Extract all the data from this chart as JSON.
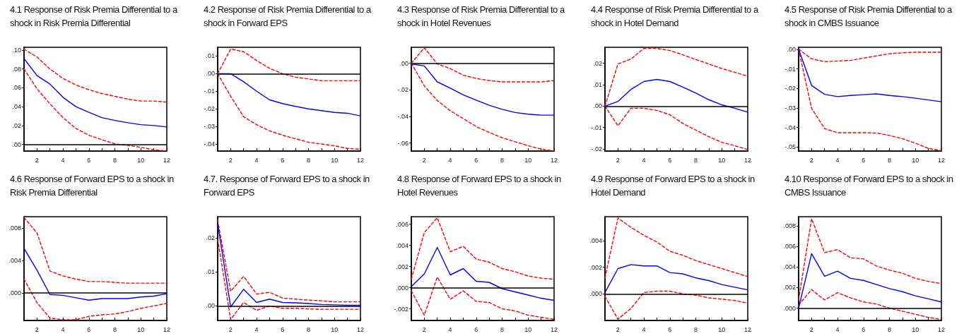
{
  "chart_data": [
    {
      "type": "line",
      "title": "4.1 Response of Risk Premia Differential to a shock in Risk Premia Differential",
      "x": [
        1,
        2,
        3,
        4,
        5,
        6,
        7,
        8,
        9,
        10,
        11,
        12
      ],
      "marker": "none",
      "xlim": [
        1,
        12
      ],
      "xticks": [
        {
          "value": 1,
          "label": null
        },
        2,
        {
          "value": 3,
          "label": null
        },
        4,
        {
          "value": 5,
          "label": null
        },
        6,
        {
          "value": 7,
          "label": null
        },
        8,
        {
          "value": 9,
          "label": null
        },
        10,
        {
          "value": 11,
          "label": null
        },
        12
      ],
      "ylim": [
        -0.007,
        0.103
      ],
      "yticks": [
        {
          "value": 0,
          "label": ".00"
        },
        {
          "value": 0.02,
          "label": ".02"
        },
        {
          "value": 0.04,
          "label": ".04"
        },
        {
          "value": 0.06,
          "label": ".06"
        },
        {
          "value": 0.08,
          "label": ".08"
        },
        {
          "value": 0.1,
          "label": ".10"
        }
      ],
      "ref_lines": [
        {
          "axis": "y",
          "value": 0,
          "color": "#000000"
        }
      ],
      "series": [
        {
          "color": "#0000ff",
          "line_style": "solid",
          "values": [
            0.091,
            0.073,
            0.064,
            0.05,
            0.04,
            0.034,
            0.0285,
            0.0255,
            0.023,
            0.021,
            0.02,
            0.0185
          ]
        },
        {
          "color": "#ff0000",
          "line_style": "dashed",
          "values": [
            0.101,
            0.0927,
            0.08,
            0.07,
            0.063,
            0.058,
            0.054,
            0.051,
            0.048,
            0.046,
            0.046,
            0.045
          ]
        },
        {
          "color": "#ff0000",
          "line_style": "dashed",
          "values": [
            0.08,
            0.059,
            0.043,
            0.0285,
            0.017,
            0.0097,
            0.005,
            0.0007,
            -0.001,
            -0.003,
            -0.0057,
            -0.0068
          ]
        }
      ]
    },
    {
      "type": "line",
      "title": "4.2 Response of Risk Premia Differential to a shock in Forward EPS",
      "x": [
        1,
        2,
        3,
        4,
        5,
        6,
        7,
        8,
        9,
        10,
        11,
        12
      ],
      "marker": "none",
      "xlim": [
        1,
        12
      ],
      "xticks": [
        {
          "value": 1,
          "label": null
        },
        2,
        {
          "value": 3,
          "label": null
        },
        4,
        {
          "value": 5,
          "label": null
        },
        6,
        {
          "value": 7,
          "label": null
        },
        8,
        {
          "value": 9,
          "label": null
        },
        10,
        {
          "value": 11,
          "label": null
        },
        12
      ],
      "ylim": [
        -0.044,
        0.015
      ],
      "yticks": [
        {
          "value": -0.04,
          "label": "-.04"
        },
        {
          "value": -0.03,
          "label": "-.03"
        },
        {
          "value": -0.02,
          "label": "-.02"
        },
        {
          "value": -0.01,
          "label": "-.01"
        },
        {
          "value": 0,
          "label": ".00"
        },
        {
          "value": 0.01,
          "label": ".01"
        }
      ],
      "ref_lines": [
        {
          "axis": "y",
          "value": 0,
          "color": "#000000"
        }
      ],
      "series": [
        {
          "color": "#0000ff",
          "line_style": "solid",
          "values": [
            0,
            0,
            -0.0046,
            -0.01,
            -0.0149,
            -0.017,
            -0.0186,
            -0.02,
            -0.021,
            -0.022,
            -0.0225,
            -0.024
          ]
        },
        {
          "color": "#ff0000",
          "line_style": "dashed",
          "values": [
            0,
            0.014,
            0.0125,
            0.0075,
            0.003,
            0,
            -0.002,
            -0.003,
            -0.004,
            -0.004,
            -0.004,
            -0.004
          ]
        },
        {
          "color": "#ff0000",
          "line_style": "dashed",
          "values": [
            0,
            -0.0128,
            -0.0245,
            -0.029,
            -0.0325,
            -0.035,
            -0.037,
            -0.039,
            -0.04,
            -0.041,
            -0.0425,
            -0.043
          ]
        }
      ]
    },
    {
      "type": "line",
      "title": "4.3 Response of Risk Premia Differential to a shock in Hotel Revenues",
      "x": [
        1,
        2,
        3,
        4,
        5,
        6,
        7,
        8,
        9,
        10,
        11,
        12
      ],
      "marker": "none",
      "xlim": [
        1,
        12
      ],
      "xticks": [
        {
          "value": 1,
          "label": null
        },
        2,
        {
          "value": 3,
          "label": null
        },
        4,
        {
          "value": 5,
          "label": null
        },
        6,
        {
          "value": 7,
          "label": null
        },
        8,
        {
          "value": 9,
          "label": null
        },
        10,
        {
          "value": 11,
          "label": null
        },
        12
      ],
      "ylim": [
        -0.066,
        0.012
      ],
      "yticks": [
        {
          "value": -0.06,
          "label": "-.06"
        },
        {
          "value": -0.04,
          "label": "-.04"
        },
        {
          "value": -0.02,
          "label": "-.02"
        },
        {
          "value": 0,
          "label": ".00"
        }
      ],
      "ref_lines": [
        {
          "axis": "y",
          "value": 0,
          "color": "#000000"
        }
      ],
      "series": [
        {
          "color": "#0000ff",
          "line_style": "solid",
          "values": [
            -0.0005,
            -0.002,
            -0.014,
            -0.0187,
            -0.0237,
            -0.0277,
            -0.0316,
            -0.0346,
            -0.037,
            -0.0383,
            -0.039,
            -0.039
          ]
        },
        {
          "color": "#ff0000",
          "line_style": "dashed",
          "values": [
            0,
            0.0116,
            -0.0005,
            -0.004,
            -0.009,
            -0.0114,
            -0.013,
            -0.014,
            -0.014,
            -0.014,
            -0.014,
            -0.013
          ]
        },
        {
          "color": "#ff0000",
          "line_style": "dashed",
          "values": [
            0,
            -0.017,
            -0.028,
            -0.0357,
            -0.0416,
            -0.0476,
            -0.052,
            -0.056,
            -0.059,
            -0.062,
            -0.0645,
            -0.066
          ]
        }
      ]
    },
    {
      "type": "line",
      "title": "4.4 Response of Risk Premia Differential to a shock in Hotel Demand",
      "x": [
        1,
        2,
        3,
        4,
        5,
        6,
        7,
        8,
        9,
        10,
        11,
        12
      ],
      "marker": "none",
      "xlim": [
        1,
        12
      ],
      "xticks": [
        {
          "value": 1,
          "label": null
        },
        2,
        {
          "value": 3,
          "label": null
        },
        4,
        {
          "value": 5,
          "label": null
        },
        6,
        {
          "value": 7,
          "label": null
        },
        8,
        {
          "value": 9,
          "label": null
        },
        10,
        {
          "value": 11,
          "label": null
        },
        12
      ],
      "ylim": [
        -0.021,
        0.0275
      ],
      "yticks": [
        {
          "value": -0.02,
          "label": "-.02"
        },
        {
          "value": -0.01,
          "label": "-.01"
        },
        {
          "value": 0,
          "label": ".00"
        },
        {
          "value": 0.01,
          "label": ".01"
        },
        {
          "value": 0.02,
          "label": ".02"
        }
      ],
      "ref_lines": [
        {
          "axis": "y",
          "value": 0,
          "color": "#000000"
        }
      ],
      "series": [
        {
          "color": "#0000ff",
          "line_style": "solid",
          "values": [
            0,
            0.0022,
            0.0078,
            0.0115,
            0.0125,
            0.0115,
            0.0089,
            0.0061,
            0.003,
            0.0006,
            -0.001,
            -0.0028
          ]
        },
        {
          "color": "#ff0000",
          "line_style": "dashed",
          "values": [
            0,
            0.0197,
            0.022,
            0.027,
            0.027,
            0.026,
            0.024,
            0.0218,
            0.0197,
            0.0176,
            0.0158,
            0.014
          ]
        },
        {
          "color": "#ff0000",
          "line_style": "dashed",
          "values": [
            0,
            -0.0092,
            -0.001,
            -0.001,
            -0.002,
            -0.004,
            -0.0081,
            -0.0112,
            -0.0143,
            -0.0169,
            -0.0185,
            -0.0203
          ]
        }
      ]
    },
    {
      "type": "line",
      "title": "4.5 Response of Risk Premia Differential to a shock in CMBS Issuance",
      "x": [
        1,
        2,
        3,
        4,
        5,
        6,
        7,
        8,
        9,
        10,
        11,
        12
      ],
      "marker": "none",
      "xlim": [
        1,
        12
      ],
      "xticks": [
        {
          "value": 1,
          "label": null
        },
        2,
        {
          "value": 3,
          "label": null
        },
        4,
        {
          "value": 5,
          "label": null
        },
        6,
        {
          "value": 7,
          "label": null
        },
        8,
        {
          "value": 9,
          "label": null
        },
        10,
        {
          "value": 11,
          "label": null
        },
        12
      ],
      "ylim": [
        -0.052,
        0.001
      ],
      "yticks": [
        {
          "value": -0.05,
          "label": "-.05"
        },
        {
          "value": -0.04,
          "label": "-.04"
        },
        {
          "value": -0.03,
          "label": "-.03"
        },
        {
          "value": -0.02,
          "label": "-.02"
        },
        {
          "value": -0.01,
          "label": "-.01"
        },
        {
          "value": 0,
          "label": ".00"
        }
      ],
      "series": [
        {
          "color": "#0000ff",
          "line_style": "solid",
          "values": [
            0,
            -0.0185,
            -0.023,
            -0.0242,
            -0.0236,
            -0.0232,
            -0.0228,
            -0.0236,
            -0.0242,
            -0.025,
            -0.0259,
            -0.0268
          ]
        },
        {
          "color": "#ff0000",
          "line_style": "dashed",
          "values": [
            0,
            -0.0049,
            -0.0064,
            -0.006,
            -0.0057,
            -0.0045,
            -0.0034,
            -0.0023,
            -0.0018,
            -0.0015,
            -0.0015,
            -0.0015
          ]
        },
        {
          "color": "#ff0000",
          "line_style": "dashed",
          "values": [
            0,
            -0.0302,
            -0.0405,
            -0.0426,
            -0.0426,
            -0.0426,
            -0.0428,
            -0.044,
            -0.0457,
            -0.048,
            -0.0506,
            -0.0518
          ]
        }
      ]
    },
    {
      "type": "line",
      "title": "4.6 Response of Forward EPS to a shock in Risk Premia Differential",
      "x": [
        1,
        2,
        3,
        4,
        5,
        6,
        7,
        8,
        9,
        10,
        11,
        12
      ],
      "marker": "none",
      "xlim": [
        1,
        12
      ],
      "xticks": [
        {
          "value": 1,
          "label": null
        },
        2,
        {
          "value": 3,
          "label": null
        },
        4,
        {
          "value": 5,
          "label": null
        },
        6,
        {
          "value": 7,
          "label": null
        },
        8,
        {
          "value": 9,
          "label": null
        },
        10,
        {
          "value": 11,
          "label": null
        },
        12
      ],
      "ylim": [
        -0.0034,
        0.0094
      ],
      "yticks": [
        {
          "value": 0,
          "label": ".000"
        },
        {
          "value": 0.004,
          "label": ".004"
        },
        {
          "value": 0.008,
          "label": ".008"
        }
      ],
      "ref_lines": [
        {
          "axis": "y",
          "value": 0,
          "color": "#000000"
        }
      ],
      "series": [
        {
          "color": "#0000ff",
          "line_style": "solid",
          "values": [
            0.0055,
            0.0028,
            -0.0002,
            -0.0003,
            -0.0006,
            -0.0009,
            -0.0007,
            -0.0007,
            -0.0007,
            -0.0005,
            -0.0004,
            -0.0001
          ]
        },
        {
          "color": "#ff0000",
          "line_style": "dashed",
          "values": [
            0.0093,
            0.0074,
            0.0027,
            0.0021,
            0.0017,
            0.0014,
            0.0014,
            0.0013,
            0.0012,
            0.0012,
            0.0012,
            0.0012
          ]
        },
        {
          "color": "#ff0000",
          "line_style": "dashed",
          "values": [
            0.0017,
            -0.0012,
            -0.0031,
            -0.0033,
            -0.0033,
            -0.0029,
            -0.0027,
            -0.0026,
            -0.0023,
            -0.0019,
            -0.0016,
            -0.0013
          ]
        }
      ]
    },
    {
      "type": "line",
      "title": "4.7. Response of Forward EPS to a shock in Forward EPS",
      "x": [
        1,
        2,
        3,
        4,
        5,
        6,
        7,
        8,
        9,
        10,
        11,
        12
      ],
      "marker": "none",
      "xlim": [
        1,
        12
      ],
      "xticks": [
        {
          "value": 1,
          "label": null
        },
        2,
        {
          "value": 3,
          "label": null
        },
        4,
        {
          "value": 5,
          "label": null
        },
        6,
        {
          "value": 7,
          "label": null
        },
        8,
        {
          "value": 9,
          "label": null
        },
        10,
        {
          "value": 11,
          "label": null
        },
        12
      ],
      "ylim": [
        -0.0043,
        0.0263
      ],
      "yticks": [
        {
          "value": 0,
          "label": ".00"
        },
        {
          "value": 0.01,
          "label": ".01"
        },
        {
          "value": 0.02,
          "label": ".02"
        }
      ],
      "ref_lines": [
        {
          "axis": "y",
          "value": 0,
          "color": "#000000"
        }
      ],
      "series": [
        {
          "color": "#0000ff",
          "line_style": "solid",
          "values": [
            0.0243,
            -0.0003,
            0.0049,
            0.001,
            0.002,
            0.001,
            0.0009,
            0.0007,
            0.0004,
            0.0003,
            0.0002,
            0.0002
          ]
        },
        {
          "color": "#ff0000",
          "line_style": "dashed",
          "values": [
            0.0253,
            0.0043,
            0.0087,
            0.0035,
            0.004,
            0.0023,
            0.002,
            0.0017,
            0.0015,
            0.0012,
            0.0012,
            0.0012
          ]
        },
        {
          "color": "#ff0000",
          "line_style": "dashed",
          "values": [
            0.0197,
            -0.004,
            0.001,
            -0.0013,
            0,
            -0.0007,
            -0.0007,
            -0.0009,
            -0.001,
            -0.001,
            -0.001,
            -0.001
          ]
        }
      ]
    },
    {
      "type": "line",
      "title": "4.8 Response of Forward EPS to a shock in Hotel Revenues",
      "x": [
        1,
        2,
        3,
        4,
        5,
        6,
        7,
        8,
        9,
        10,
        11,
        12
      ],
      "marker": "none",
      "xlim": [
        1,
        12
      ],
      "xticks": [
        {
          "value": 1,
          "label": null
        },
        2,
        {
          "value": 3,
          "label": null
        },
        4,
        {
          "value": 5,
          "label": null
        },
        6,
        {
          "value": 7,
          "label": null
        },
        8,
        {
          "value": 9,
          "label": null
        },
        10,
        {
          "value": 11,
          "label": null
        },
        12
      ],
      "ylim": [
        -0.0031,
        0.0067
      ],
      "yticks": [
        {
          "value": -0.002,
          "label": "-.002"
        },
        {
          "value": 0,
          "label": ".000"
        },
        {
          "value": 0.002,
          "label": ".002"
        },
        {
          "value": 0.004,
          "label": ".004"
        },
        {
          "value": 0.006,
          "label": ".006"
        }
      ],
      "ref_lines": [
        {
          "axis": "y",
          "value": 0,
          "color": "#000000"
        }
      ],
      "series": [
        {
          "color": "#0000ff",
          "line_style": "solid",
          "values": [
            0.0001,
            0.0013,
            0.0038,
            0.0012,
            0.0018,
            0.0006,
            0.0005,
            -0.0001,
            -0.0004,
            -0.0007,
            -0.001,
            -0.0012
          ]
        },
        {
          "color": "#ff0000",
          "line_style": "dashed",
          "values": [
            0.0008,
            0.0052,
            0.0066,
            0.0034,
            0.0039,
            0.0027,
            0.0024,
            0.0018,
            0.0015,
            0.0011,
            0.0009,
            0.0008
          ]
        },
        {
          "color": "#ff0000",
          "line_style": "dashed",
          "values": [
            -0.0003,
            -0.0026,
            0.001,
            -0.0011,
            -0.0003,
            -0.0013,
            -0.0014,
            -0.002,
            -0.0022,
            -0.0026,
            -0.0028,
            -0.003
          ]
        }
      ]
    },
    {
      "type": "line",
      "title": "4.9 Response of Forward EPS to a shock in Hotel Demand",
      "x": [
        1,
        2,
        3,
        4,
        5,
        6,
        7,
        8,
        9,
        10,
        11,
        12
      ],
      "marker": "none",
      "xlim": [
        1,
        12
      ],
      "xticks": [
        {
          "value": 1,
          "label": null
        },
        2,
        {
          "value": 3,
          "label": null
        },
        4,
        {
          "value": 5,
          "label": null
        },
        6,
        {
          "value": 7,
          "label": null
        },
        8,
        {
          "value": 9,
          "label": null
        },
        10,
        {
          "value": 11,
          "label": null
        },
        12
      ],
      "ylim": [
        -0.002,
        0.0058
      ],
      "yticks": [
        {
          "value": 0,
          "label": ".000"
        },
        {
          "value": 0.002,
          "label": ".002"
        },
        {
          "value": 0.004,
          "label": ".004"
        }
      ],
      "ref_lines": [
        {
          "axis": "y",
          "value": 0,
          "color": "#000000"
        }
      ],
      "series": [
        {
          "color": "#0000ff",
          "line_style": "solid",
          "values": [
            0.0001,
            0.0019,
            0.0022,
            0.0021,
            0.0021,
            0.0016,
            0.0015,
            0.0012,
            0.001,
            0.0007,
            0.0005,
            0.0003
          ]
        },
        {
          "color": "#ff0000",
          "line_style": "dashed",
          "values": [
            0.0012,
            0.0057,
            0.005,
            0.0044,
            0.0039,
            0.0032,
            0.0029,
            0.0025,
            0.0022,
            0.0019,
            0.0016,
            0.0013
          ]
        },
        {
          "color": "#ff0000",
          "line_style": "dashed",
          "values": [
            -0.0002,
            -0.0019,
            -0.0011,
            0.0001,
            0.0002,
            0.0002,
            0,
            -0.0001,
            -0.0003,
            -0.0004,
            -0.0005,
            -0.0007
          ]
        }
      ]
    },
    {
      "type": "line",
      "title": "4.10 Response of Forward EPS to a shock in CMBS Issuance",
      "x": [
        1,
        2,
        3,
        4,
        5,
        6,
        7,
        8,
        9,
        10,
        11,
        12
      ],
      "marker": "none",
      "xlim": [
        1,
        12
      ],
      "xticks": [
        {
          "value": 1,
          "label": null
        },
        2,
        {
          "value": 3,
          "label": null
        },
        4,
        {
          "value": 5,
          "label": null
        },
        6,
        {
          "value": 7,
          "label": null
        },
        8,
        {
          "value": 9,
          "label": null
        },
        10,
        {
          "value": 11,
          "label": null
        },
        12
      ],
      "ylim": [
        -0.0012,
        0.0089
      ],
      "yticks": [
        {
          "value": 0,
          "label": ".000"
        },
        {
          "value": 0.002,
          "label": ".002"
        },
        {
          "value": 0.004,
          "label": ".004"
        },
        {
          "value": 0.006,
          "label": ".006"
        },
        {
          "value": 0.008,
          "label": ".008"
        }
      ],
      "ref_lines": [
        {
          "axis": "y",
          "value": 0,
          "color": "#000000"
        }
      ],
      "series": [
        {
          "color": "#0000ff",
          "line_style": "solid",
          "values": [
            0,
            0.0053,
            0.0031,
            0.0036,
            0.0029,
            0.0027,
            0.0023,
            0.0019,
            0.0016,
            0.0012,
            0.0009,
            0.0006
          ]
        },
        {
          "color": "#ff0000",
          "line_style": "dashed",
          "values": [
            0.0008,
            0.0087,
            0.0054,
            0.0057,
            0.0049,
            0.0048,
            0.0041,
            0.0037,
            0.0034,
            0.0029,
            0.0026,
            0.0024
          ]
        },
        {
          "color": "#ff0000",
          "line_style": "dashed",
          "values": [
            0.0003,
            0.0018,
            0.0008,
            0.0015,
            0.001,
            0.0006,
            0.0004,
            0,
            -0.0003,
            -0.0006,
            -0.0009,
            -0.0011
          ]
        }
      ]
    }
  ]
}
